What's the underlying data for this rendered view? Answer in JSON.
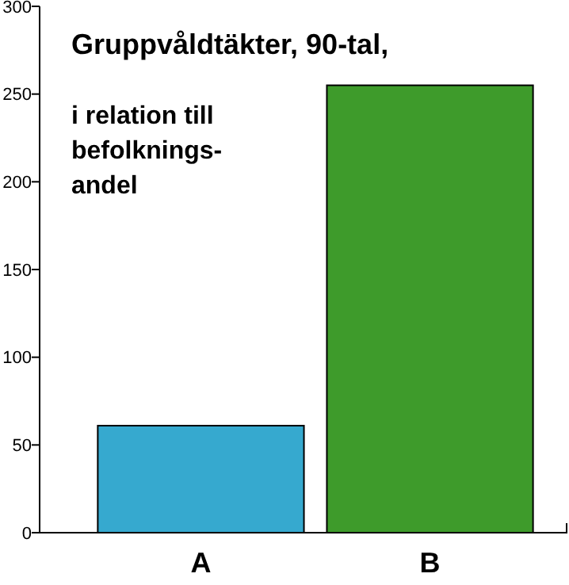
{
  "chart_data": {
    "type": "bar",
    "title": "Gruppvåldtäkter, 90-tal,",
    "subtitle": "i relation till\nbefolknings-\nandel",
    "categories": [
      "A",
      "B"
    ],
    "values": [
      61,
      255
    ],
    "colors": [
      "#36a9cf",
      "#3e9b2b"
    ],
    "ylim": [
      0,
      300
    ],
    "yticks": [
      0,
      50,
      100,
      150,
      200,
      250,
      300
    ],
    "grid": false
  }
}
